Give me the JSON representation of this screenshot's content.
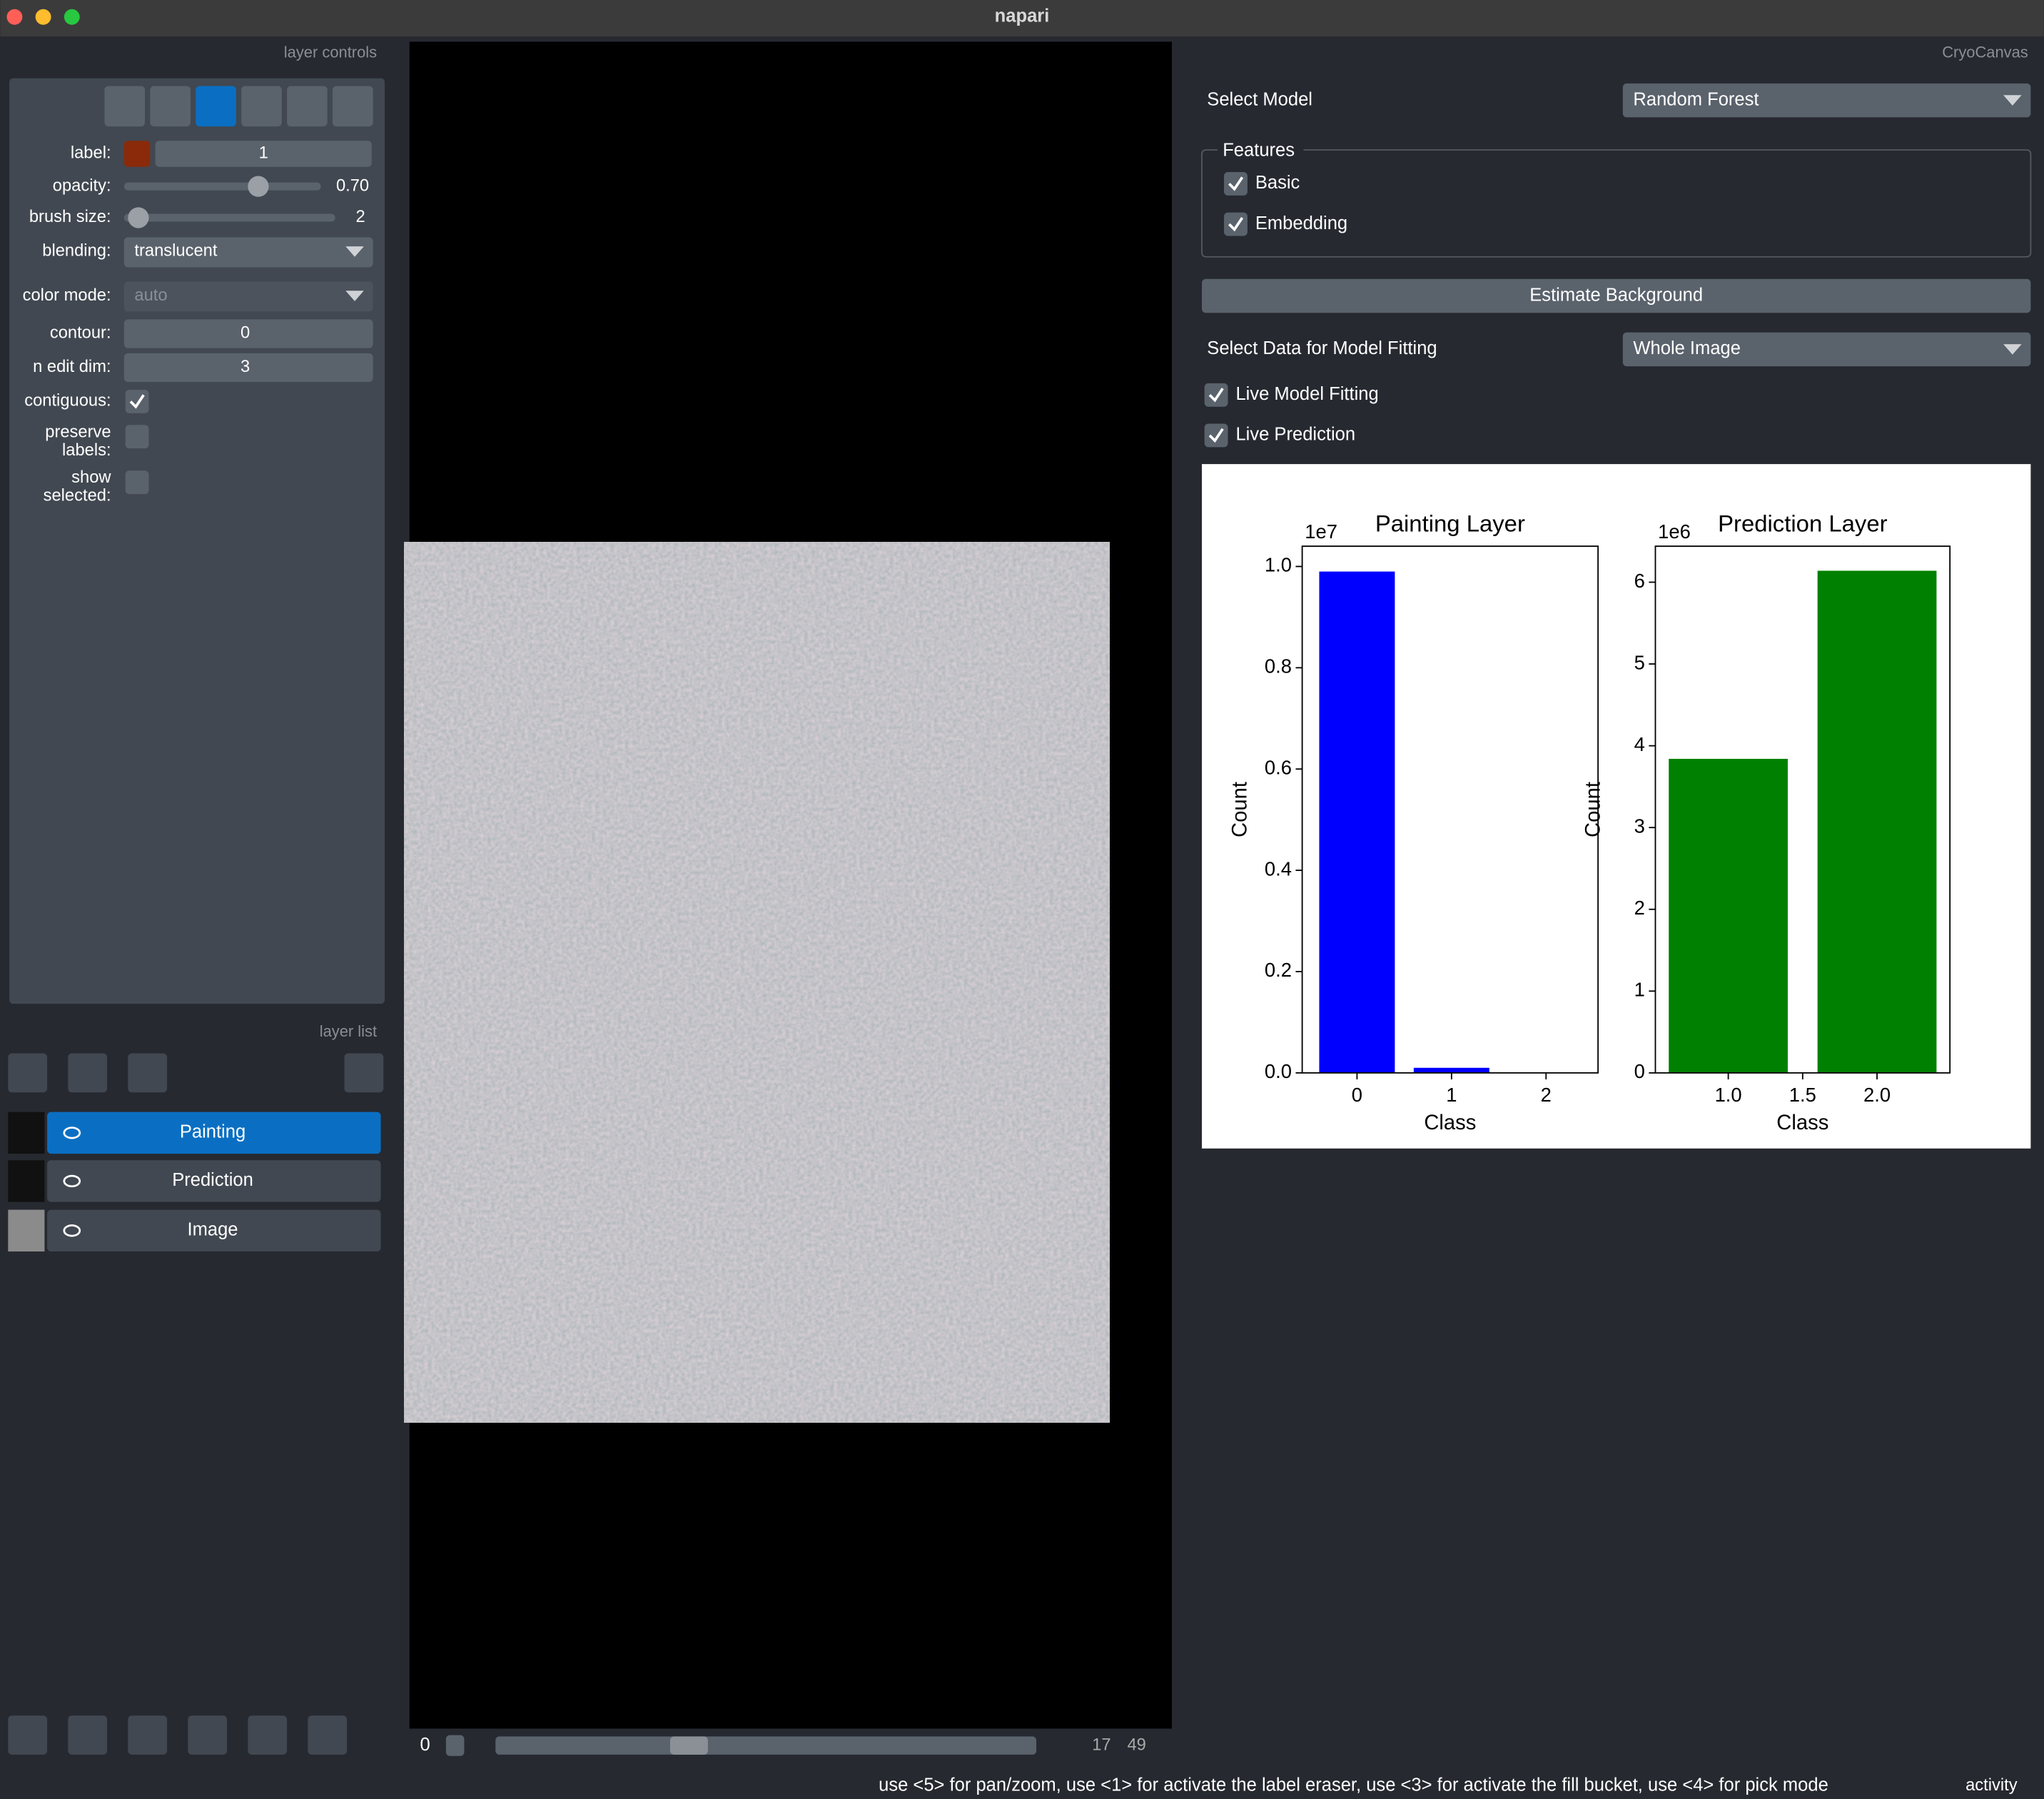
{
  "window": {
    "title": "napari"
  },
  "layer_controls": {
    "header": "layer controls",
    "rows": [
      {
        "label": "label:",
        "value": "1"
      },
      {
        "label": "opacity:",
        "value": "0.70"
      },
      {
        "label": "brush size:",
        "value": "2"
      },
      {
        "label": "blending:",
        "value": "translucent"
      },
      {
        "label": "color mode:",
        "value": "auto"
      },
      {
        "label": "contour:",
        "value": "0"
      },
      {
        "label": "n edit dim:",
        "value": "3"
      },
      {
        "label": "contiguous:"
      },
      {
        "label": "preserve labels:"
      },
      {
        "label": "show selected:"
      }
    ]
  },
  "layer_list": {
    "header": "layer list",
    "layers": [
      "Painting",
      "Prediction",
      "Image"
    ]
  },
  "viewer": {
    "slider": {
      "value": "0",
      "position": "17",
      "total": "49"
    }
  },
  "plugin": {
    "header": "CryoCanvas",
    "select_model": {
      "label": "Select Model",
      "value": "Random Forest"
    },
    "features": {
      "title": "Features",
      "options": [
        "Basic",
        "Embedding"
      ]
    },
    "button": "Estimate Background",
    "select_data": {
      "label": "Select Data for Model Fitting",
      "value": "Whole Image"
    },
    "checks": [
      "Live Model Fitting",
      "Live Prediction"
    ]
  },
  "status": {
    "message": "use <5> for pan/zoom, use <1> for activate the label eraser, use <3> for activate the fill bucket, use <4> for pick mode",
    "activity": "activity"
  },
  "chart_data": [
    {
      "type": "bar",
      "title": "Painting Layer",
      "x": [
        0,
        1,
        2
      ],
      "values": [
        0.99,
        0.01,
        0
      ],
      "color": "#0000ff",
      "xlabel": "Class",
      "ylabel": "Count",
      "offset_label": "1e7",
      "xlim": [
        -0.58,
        2.55
      ],
      "xticks": [
        0,
        1,
        2
      ],
      "ylim": [
        0,
        1.04
      ],
      "yticks": [
        {
          "value": 0,
          "label": "0.0"
        },
        {
          "value": 0.2,
          "label": "0.2"
        },
        {
          "value": 0.4,
          "label": "0.4"
        },
        {
          "value": 0.6,
          "label": "0.6"
        },
        {
          "value": 0.8,
          "label": "0.8"
        },
        {
          "value": 1,
          "label": "1.0"
        }
      ]
    },
    {
      "type": "bar",
      "title": "Prediction Layer",
      "x": [
        1,
        2
      ],
      "values": [
        3.84,
        6.14
      ],
      "color": "#008000",
      "xlabel": "Class",
      "ylabel": "Count",
      "offset_label": "1e6",
      "xlim": [
        0.51,
        2.49
      ],
      "xticks": [
        {
          "value": 1,
          "label": "1.0"
        },
        1.5,
        {
          "value": 2,
          "label": "2.0"
        }
      ],
      "ylim": [
        0,
        6.44
      ],
      "yticks": [
        0,
        1,
        2,
        3,
        4,
        5,
        6
      ]
    }
  ]
}
